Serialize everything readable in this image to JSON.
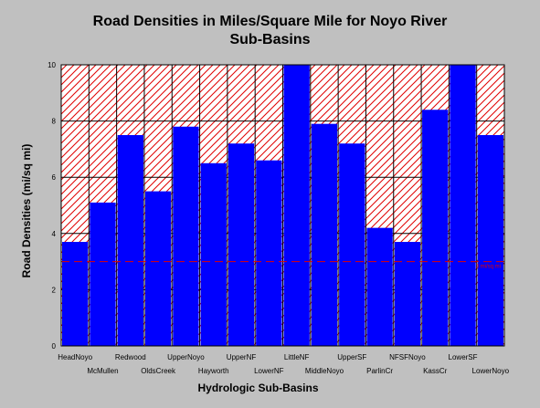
{
  "chart_data": {
    "type": "bar",
    "title_line1": "Road Densities in Miles/Square Mile for Noyo River",
    "title_line2": "Sub-Basins",
    "xlabel": "Hydrologic Sub-Basins",
    "ylabel": "Road Densities (mi/sq mi)",
    "ylim": [
      0,
      10
    ],
    "yticks": [
      "0",
      "2",
      "4",
      "6",
      "8",
      "10"
    ],
    "grid": true,
    "categories": [
      "HeadNoyo",
      "McMullen",
      "Redwood",
      "OldsCreek",
      "UpperNoyo",
      "Hayworth",
      "UpperNF",
      "LowerNF",
      "LittleNF",
      "MiddleNoyo",
      "UpperSF",
      "ParlinCr",
      "NFSFNoyo",
      "KassCr",
      "LowerSF",
      "LowerNoyo"
    ],
    "values": [
      3.7,
      5.1,
      7.5,
      5.5,
      7.8,
      6.5,
      7.2,
      6.6,
      10.0,
      7.9,
      7.2,
      4.2,
      3.7,
      8.4,
      10.0,
      7.5
    ],
    "bar_color": "#0000ff",
    "hatch_color": "#e00000",
    "reference_line": {
      "value": 3.0,
      "label": "3 mi/sq mi",
      "color": "#e00000"
    }
  }
}
